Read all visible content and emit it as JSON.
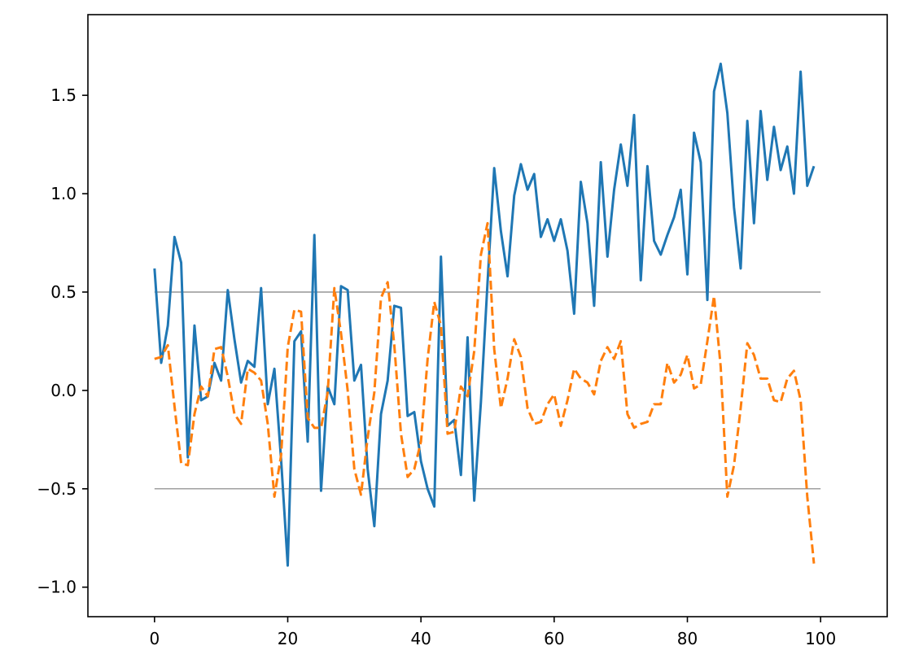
{
  "chart_data": {
    "type": "line",
    "title": "",
    "xlabel": "",
    "ylabel": "",
    "xlim": [
      -10,
      110
    ],
    "ylim": [
      -1.15,
      1.91
    ],
    "x_ticks": [
      0,
      20,
      40,
      60,
      80,
      100
    ],
    "y_ticks": [
      -1.0,
      -0.5,
      0.0,
      0.5,
      1.0,
      1.5
    ],
    "x_tick_labels": [
      "0",
      "20",
      "40",
      "60",
      "80",
      "100"
    ],
    "y_tick_labels": [
      "−1.0",
      "−0.5",
      "0.0",
      "0.5",
      "1.0",
      "1.5"
    ],
    "grid": false,
    "legend": "none",
    "hlines": [
      {
        "y": 0.5,
        "xmin": 0,
        "xmax": 100,
        "color": "#808080"
      },
      {
        "y": -0.5,
        "xmin": 0,
        "xmax": 100,
        "color": "#808080"
      }
    ],
    "series": [
      {
        "color": "#1f77b4",
        "linestyle": "solid",
        "x": [
          0,
          1,
          2,
          3,
          4,
          5,
          6,
          7,
          8,
          9,
          10,
          11,
          12,
          13,
          14,
          15,
          16,
          17,
          18,
          19,
          20,
          21,
          22,
          23,
          24,
          25,
          26,
          27,
          28,
          29,
          30,
          31,
          32,
          33,
          34,
          35,
          36,
          37,
          38,
          39,
          40,
          41,
          42,
          43,
          44,
          45,
          46,
          47,
          48,
          49,
          50,
          51,
          52,
          53,
          54,
          55,
          56,
          57,
          58,
          59,
          60,
          61,
          62,
          63,
          64,
          65,
          66,
          67,
          68,
          69,
          70,
          71,
          72,
          73,
          74,
          75,
          76,
          77,
          78,
          79,
          80,
          81,
          82,
          83,
          84,
          85,
          86,
          87,
          88,
          89,
          90,
          91,
          92,
          93,
          94,
          95,
          96,
          97,
          98,
          99
        ],
        "values": [
          0.62,
          0.14,
          0.33,
          0.78,
          0.65,
          -0.34,
          0.33,
          -0.05,
          -0.03,
          0.14,
          0.05,
          0.51,
          0.26,
          0.04,
          0.15,
          0.12,
          0.52,
          -0.07,
          0.11,
          -0.35,
          -0.89,
          0.25,
          0.3,
          -0.26,
          0.79,
          -0.51,
          0.02,
          -0.07,
          0.53,
          0.51,
          0.05,
          0.13,
          -0.4,
          -0.69,
          -0.12,
          0.05,
          0.43,
          0.42,
          -0.13,
          -0.11,
          -0.36,
          -0.5,
          -0.59,
          0.68,
          -0.18,
          -0.15,
          -0.43,
          0.27,
          -0.56,
          -0.06,
          0.55,
          1.13,
          0.81,
          0.58,
          0.99,
          1.15,
          1.02,
          1.1,
          0.78,
          0.87,
          0.76,
          0.87,
          0.71,
          0.39,
          1.06,
          0.85,
          0.43,
          1.16,
          0.68,
          1.02,
          1.25,
          1.04,
          1.4,
          0.56,
          1.14,
          0.76,
          0.69,
          0.79,
          0.88,
          1.02,
          0.59,
          1.31,
          1.16,
          0.46,
          1.52,
          1.66,
          1.41,
          0.93,
          0.62,
          1.37,
          0.85,
          1.42,
          1.07,
          1.34,
          1.12,
          1.24,
          1.0,
          1.62,
          1.04,
          1.14
        ]
      },
      {
        "color": "#ff7f0e",
        "linestyle": "dashed",
        "x": [
          0,
          1,
          2,
          3,
          4,
          5,
          6,
          7,
          8,
          9,
          10,
          11,
          12,
          13,
          14,
          15,
          16,
          17,
          18,
          19,
          20,
          21,
          22,
          23,
          24,
          25,
          26,
          27,
          28,
          29,
          30,
          31,
          32,
          33,
          34,
          35,
          36,
          37,
          38,
          39,
          40,
          41,
          42,
          43,
          44,
          45,
          46,
          47,
          48,
          49,
          50,
          51,
          52,
          53,
          54,
          55,
          56,
          57,
          58,
          59,
          60,
          61,
          62,
          63,
          64,
          65,
          66,
          67,
          68,
          69,
          70,
          71,
          72,
          73,
          74,
          75,
          76,
          77,
          78,
          79,
          80,
          81,
          82,
          83,
          84,
          85,
          86,
          87,
          88,
          89,
          90,
          91,
          92,
          93,
          94,
          95,
          96,
          97,
          98,
          99
        ],
        "values": [
          0.16,
          0.17,
          0.23,
          -0.08,
          -0.37,
          -0.38,
          -0.12,
          0.02,
          -0.03,
          0.21,
          0.22,
          0.07,
          -0.12,
          -0.17,
          0.11,
          0.09,
          0.05,
          -0.17,
          -0.54,
          -0.33,
          0.22,
          0.41,
          0.4,
          -0.14,
          -0.19,
          -0.19,
          -0.01,
          0.52,
          0.29,
          0.0,
          -0.4,
          -0.53,
          -0.24,
          -0.01,
          0.47,
          0.55,
          0.23,
          -0.22,
          -0.44,
          -0.4,
          -0.26,
          0.16,
          0.45,
          0.33,
          -0.22,
          -0.21,
          0.02,
          -0.03,
          0.2,
          0.69,
          0.85,
          0.21,
          -0.09,
          0.06,
          0.26,
          0.17,
          -0.09,
          -0.17,
          -0.16,
          -0.07,
          -0.02,
          -0.18,
          -0.05,
          0.11,
          0.06,
          0.04,
          -0.02,
          0.15,
          0.22,
          0.16,
          0.25,
          -0.12,
          -0.19,
          -0.17,
          -0.16,
          -0.07,
          -0.07,
          0.14,
          0.04,
          0.08,
          0.18,
          0.01,
          0.03,
          0.25,
          0.48,
          0.12,
          -0.54,
          -0.38,
          -0.09,
          0.24,
          0.18,
          0.06,
          0.06,
          -0.05,
          -0.06,
          0.06,
          0.1,
          -0.05,
          -0.54,
          -0.88
        ]
      }
    ]
  }
}
